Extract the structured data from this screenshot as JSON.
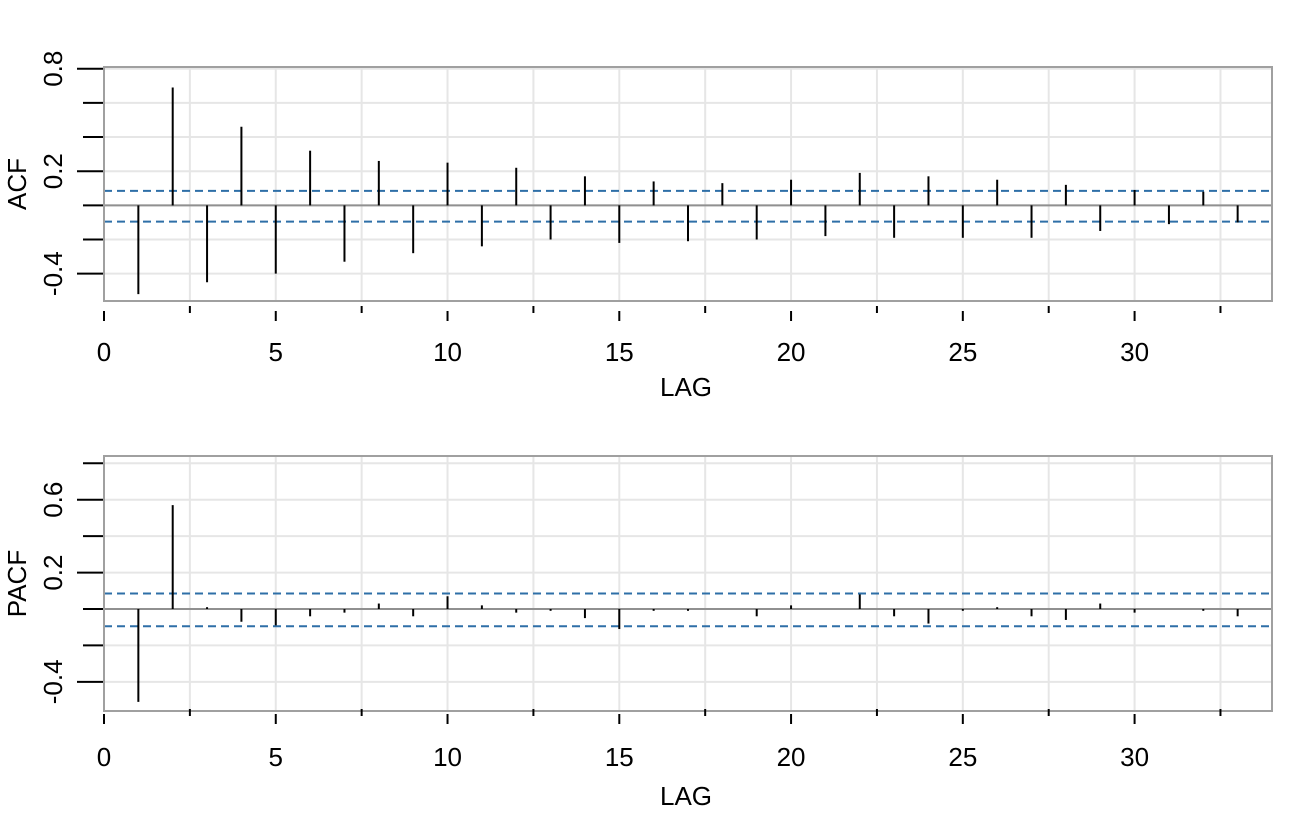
{
  "chart_data": [
    {
      "type": "bar",
      "style": "stem",
      "xlabel": "LAG",
      "ylabel": "ACF",
      "xlim": [
        0,
        34
      ],
      "ylim": [
        -0.56,
        0.81
      ],
      "xticks": [
        0,
        5,
        10,
        15,
        20,
        25,
        30
      ],
      "xminor_ticks": [
        2.5,
        7.5,
        12.5,
        17.5,
        22.5,
        27.5,
        32.5
      ],
      "yticks": [
        -0.4,
        0.2,
        0.8
      ],
      "yminor_ticks": [
        -0.2,
        0.0,
        0.4,
        0.6
      ],
      "grid": true,
      "zero_line": 0,
      "confidence_bounds": [
        0.085,
        -0.095
      ],
      "x": [
        1,
        2,
        3,
        4,
        5,
        6,
        7,
        8,
        9,
        10,
        11,
        12,
        13,
        14,
        15,
        16,
        17,
        18,
        19,
        20,
        21,
        22,
        23,
        24,
        25,
        26,
        27,
        28,
        29,
        30,
        31,
        32,
        33
      ],
      "values": [
        -0.52,
        0.69,
        -0.45,
        0.46,
        -0.4,
        0.32,
        -0.33,
        0.26,
        -0.28,
        0.25,
        -0.24,
        0.22,
        -0.2,
        0.17,
        -0.22,
        0.14,
        -0.21,
        0.13,
        -0.2,
        0.15,
        -0.18,
        0.19,
        -0.19,
        0.17,
        -0.19,
        0.15,
        -0.19,
        0.12,
        -0.15,
        0.09,
        -0.11,
        0.08,
        -0.1
      ],
      "colors": {
        "stem": "#000000",
        "bounds": "#2e6fa7",
        "grid": "#e6e6e6",
        "frame": "#a0a0a0",
        "zero": "#909090"
      }
    },
    {
      "type": "bar",
      "style": "stem",
      "xlabel": "LAG",
      "ylabel": "PACF",
      "xlim": [
        0,
        34
      ],
      "ylim": [
        -0.56,
        0.84
      ],
      "xticks": [
        0,
        5,
        10,
        15,
        20,
        25,
        30
      ],
      "xminor_ticks": [
        2.5,
        7.5,
        12.5,
        17.5,
        22.5,
        27.5,
        32.5
      ],
      "yticks": [
        -0.4,
        0.2,
        0.6
      ],
      "yminor_ticks": [
        -0.2,
        0.0,
        0.4,
        0.8
      ],
      "grid": true,
      "zero_line": 0,
      "confidence_bounds": [
        0.085,
        -0.095
      ],
      "x": [
        1,
        2,
        3,
        4,
        5,
        6,
        7,
        8,
        9,
        10,
        11,
        12,
        13,
        14,
        15,
        16,
        17,
        18,
        19,
        20,
        21,
        22,
        23,
        24,
        25,
        26,
        27,
        28,
        29,
        30,
        31,
        32,
        33
      ],
      "values": [
        -0.51,
        0.57,
        0.01,
        -0.07,
        -0.09,
        -0.04,
        -0.02,
        0.03,
        -0.04,
        0.07,
        0.02,
        -0.02,
        -0.01,
        -0.05,
        -0.11,
        -0.01,
        -0.01,
        0.0,
        -0.04,
        0.02,
        0.0,
        0.08,
        -0.04,
        -0.08,
        -0.01,
        0.01,
        -0.04,
        -0.06,
        0.03,
        -0.02,
        0.0,
        -0.01,
        -0.04
      ],
      "colors": {
        "stem": "#000000",
        "bounds": "#2e6fa7",
        "grid": "#e6e6e6",
        "frame": "#a0a0a0",
        "zero": "#909090"
      }
    }
  ]
}
